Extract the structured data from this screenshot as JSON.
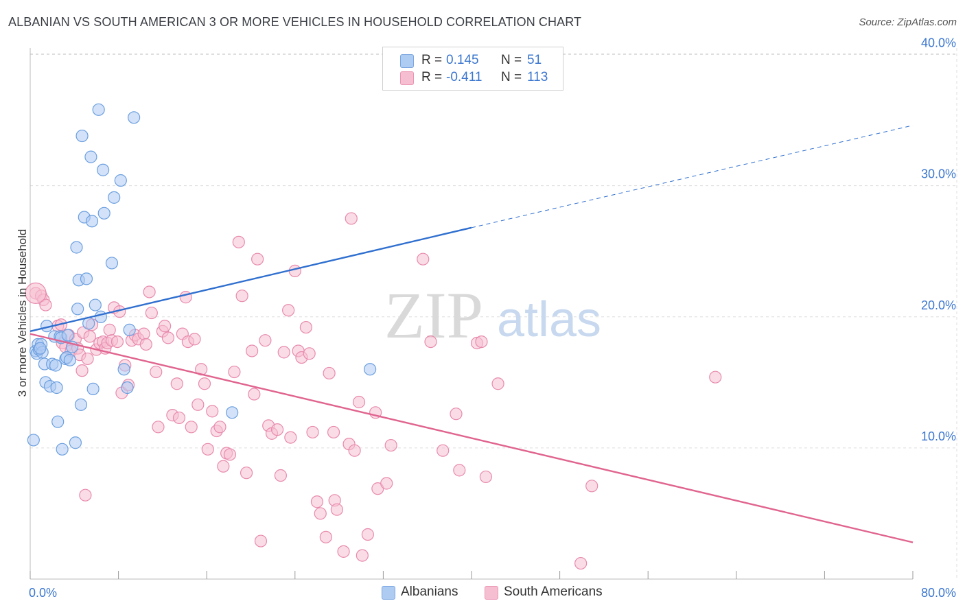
{
  "title": "ALBANIAN VS SOUTH AMERICAN 3 OR MORE VEHICLES IN HOUSEHOLD CORRELATION CHART",
  "source": "Source: ZipAtlas.com",
  "watermark": {
    "zip": "ZIP",
    "atlas": "atlas"
  },
  "colors": {
    "blue_fill": "#aecbf2",
    "blue_stroke": "#6b9fe0",
    "blue_line": "#2f6fcf",
    "pink_fill": "#f6bfd1",
    "pink_stroke": "#e88aad",
    "pink_line": "#e0648f",
    "axis_text": "#3a76cf",
    "grid": "#dddddd"
  },
  "legend_top": {
    "rows": [
      {
        "r_label": "R =",
        "r_value": "0.145",
        "n_label": "N =",
        "n_value": "51"
      },
      {
        "r_label": "R =",
        "r_value": "-0.411",
        "n_label": "N =",
        "n_value": "113"
      }
    ]
  },
  "legend_bottom": [
    "Albanians",
    "South Americans"
  ],
  "chart_data": {
    "type": "scatter",
    "title": "ALBANIAN VS SOUTH AMERICAN 3 OR MORE VEHICLES IN HOUSEHOLD CORRELATION CHART",
    "xlabel": "",
    "ylabel": "3 or more Vehicles in Household",
    "xlim": [
      0,
      80
    ],
    "ylim": [
      0,
      40.5
    ],
    "x_tick_labels": [
      "0.0%",
      "80.0%"
    ],
    "y_ticks": [
      10,
      20,
      30,
      40
    ],
    "y_tick_labels": [
      "10.0%",
      "20.0%",
      "30.0%",
      "40.0%"
    ],
    "grid": true,
    "legend_position": "top-center",
    "series": [
      {
        "name": "Albanians",
        "color": "#aecbf2",
        "r": 0.145,
        "n": 51,
        "trend": {
          "x0": 0,
          "y0": 18.9,
          "x1": 40,
          "y1": 26.8,
          "dashed_to_x": 80,
          "dashed_to_y": 34.6
        },
        "points": [
          [
            0.3,
            10.6
          ],
          [
            0.5,
            17.4
          ],
          [
            0.6,
            17.2
          ],
          [
            0.7,
            17.9
          ],
          [
            0.8,
            17.5
          ],
          [
            1.0,
            17.9
          ],
          [
            1.1,
            17.3
          ],
          [
            1.3,
            16.4
          ],
          [
            1.4,
            15.0
          ],
          [
            1.5,
            19.3
          ],
          [
            1.8,
            14.7
          ],
          [
            2.0,
            16.4
          ],
          [
            2.2,
            18.5
          ],
          [
            2.3,
            16.3
          ],
          [
            2.4,
            14.6
          ],
          [
            2.5,
            12.0
          ],
          [
            2.7,
            18.5
          ],
          [
            2.8,
            18.4
          ],
          [
            2.9,
            9.9
          ],
          [
            3.2,
            16.8
          ],
          [
            3.3,
            16.9
          ],
          [
            3.4,
            18.6
          ],
          [
            3.6,
            16.7
          ],
          [
            3.8,
            17.7
          ],
          [
            4.1,
            10.4
          ],
          [
            4.2,
            25.3
          ],
          [
            4.3,
            20.6
          ],
          [
            4.4,
            22.8
          ],
          [
            4.6,
            13.3
          ],
          [
            4.7,
            33.8
          ],
          [
            4.9,
            27.6
          ],
          [
            5.1,
            22.9
          ],
          [
            5.3,
            19.5
          ],
          [
            5.5,
            32.2
          ],
          [
            5.6,
            27.3
          ],
          [
            5.7,
            14.5
          ],
          [
            5.9,
            20.9
          ],
          [
            6.2,
            35.8
          ],
          [
            6.4,
            20.0
          ],
          [
            6.6,
            31.2
          ],
          [
            6.7,
            27.9
          ],
          [
            7.4,
            24.1
          ],
          [
            7.6,
            29.1
          ],
          [
            8.2,
            30.4
          ],
          [
            8.5,
            16.0
          ],
          [
            8.8,
            14.6
          ],
          [
            9.0,
            19.0
          ],
          [
            9.4,
            35.2
          ],
          [
            18.3,
            12.7
          ],
          [
            30.8,
            16.0
          ],
          [
            0.9,
            17.6
          ]
        ]
      },
      {
        "name": "South Americans",
        "color": "#f6bfd1",
        "r": -0.411,
        "n": 113,
        "trend": {
          "x0": 0,
          "y0": 18.7,
          "x1": 80,
          "y1": 2.8
        },
        "points": [
          [
            0.5,
            21.8
          ],
          [
            1.0,
            21.6
          ],
          [
            1.2,
            21.3
          ],
          [
            1.4,
            20.9
          ],
          [
            2.5,
            19.3
          ],
          [
            2.8,
            19.4
          ],
          [
            2.9,
            18.0
          ],
          [
            3.2,
            17.7
          ],
          [
            3.5,
            18.6
          ],
          [
            3.7,
            17.4
          ],
          [
            4.1,
            18.3
          ],
          [
            4.3,
            17.6
          ],
          [
            4.5,
            17.1
          ],
          [
            4.7,
            15.9
          ],
          [
            4.8,
            18.8
          ],
          [
            5.0,
            6.4
          ],
          [
            5.2,
            16.8
          ],
          [
            5.4,
            18.5
          ],
          [
            5.6,
            19.4
          ],
          [
            6.0,
            17.5
          ],
          [
            6.3,
            18.0
          ],
          [
            6.6,
            18.1
          ],
          [
            6.8,
            17.6
          ],
          [
            7.0,
            18.0
          ],
          [
            7.2,
            19.0
          ],
          [
            7.4,
            18.2
          ],
          [
            7.6,
            20.7
          ],
          [
            7.9,
            18.1
          ],
          [
            8.1,
            20.4
          ],
          [
            8.3,
            14.2
          ],
          [
            8.6,
            16.3
          ],
          [
            8.9,
            14.8
          ],
          [
            9.2,
            18.2
          ],
          [
            9.5,
            18.6
          ],
          [
            9.8,
            18.3
          ],
          [
            10.3,
            18.7
          ],
          [
            10.5,
            17.9
          ],
          [
            10.8,
            21.9
          ],
          [
            11.0,
            20.3
          ],
          [
            11.4,
            15.8
          ],
          [
            11.6,
            11.6
          ],
          [
            12.0,
            18.9
          ],
          [
            12.2,
            19.3
          ],
          [
            12.5,
            18.4
          ],
          [
            12.9,
            12.5
          ],
          [
            13.3,
            14.9
          ],
          [
            13.5,
            12.3
          ],
          [
            13.8,
            18.7
          ],
          [
            14.1,
            21.5
          ],
          [
            14.3,
            18.1
          ],
          [
            14.6,
            11.6
          ],
          [
            14.9,
            18.3
          ],
          [
            15.2,
            13.3
          ],
          [
            15.5,
            16.0
          ],
          [
            15.8,
            14.9
          ],
          [
            16.1,
            9.9
          ],
          [
            16.5,
            12.8
          ],
          [
            16.9,
            11.3
          ],
          [
            17.2,
            11.6
          ],
          [
            17.5,
            8.6
          ],
          [
            17.8,
            9.6
          ],
          [
            18.1,
            9.5
          ],
          [
            18.5,
            15.8
          ],
          [
            18.9,
            25.7
          ],
          [
            19.2,
            21.6
          ],
          [
            19.6,
            8.1
          ],
          [
            20.1,
            17.4
          ],
          [
            20.3,
            14.1
          ],
          [
            20.6,
            24.4
          ],
          [
            20.9,
            2.9
          ],
          [
            21.3,
            18.2
          ],
          [
            21.6,
            11.7
          ],
          [
            21.9,
            11.1
          ],
          [
            22.4,
            11.4
          ],
          [
            22.7,
            7.9
          ],
          [
            23.0,
            17.3
          ],
          [
            23.4,
            20.5
          ],
          [
            23.6,
            10.8
          ],
          [
            24.0,
            23.5
          ],
          [
            24.3,
            17.4
          ],
          [
            24.6,
            16.9
          ],
          [
            25.0,
            19.2
          ],
          [
            25.3,
            17.2
          ],
          [
            25.6,
            11.2
          ],
          [
            26.0,
            5.9
          ],
          [
            26.3,
            5.0
          ],
          [
            27.1,
            15.7
          ],
          [
            27.5,
            11.2
          ],
          [
            27.6,
            6.0
          ],
          [
            27.8,
            5.3
          ],
          [
            28.4,
            2.1
          ],
          [
            28.9,
            10.3
          ],
          [
            29.1,
            27.5
          ],
          [
            29.4,
            9.8
          ],
          [
            29.8,
            13.5
          ],
          [
            30.1,
            1.8
          ],
          [
            30.6,
            3.4
          ],
          [
            31.3,
            12.7
          ],
          [
            31.5,
            6.9
          ],
          [
            32.3,
            7.3
          ],
          [
            32.7,
            10.2
          ],
          [
            35.6,
            24.4
          ],
          [
            36.3,
            18.1
          ],
          [
            37.4,
            9.8
          ],
          [
            38.6,
            12.6
          ],
          [
            38.9,
            8.3
          ],
          [
            40.5,
            18.0
          ],
          [
            40.9,
            18.1
          ],
          [
            41.3,
            7.8
          ],
          [
            42.4,
            14.9
          ],
          [
            49.9,
            1.2
          ],
          [
            50.9,
            7.1
          ],
          [
            62.1,
            15.4
          ],
          [
            26.8,
            3.2
          ]
        ]
      }
    ]
  }
}
